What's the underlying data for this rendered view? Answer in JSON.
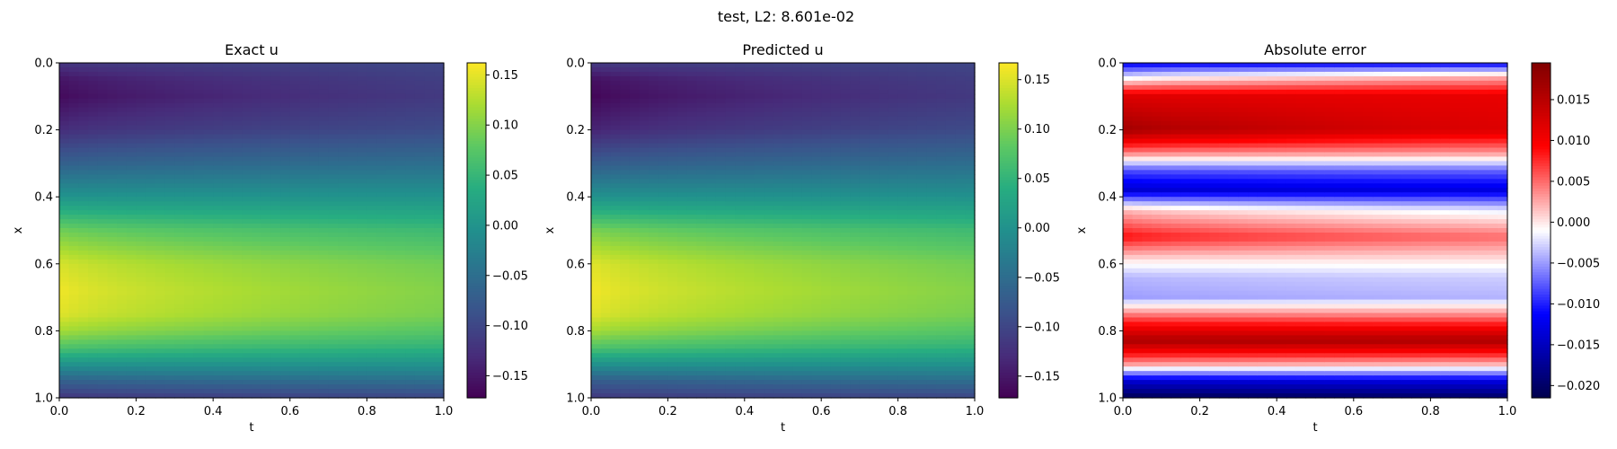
{
  "figure": {
    "suptitle": "test, L2: 8.601e-02"
  },
  "chart_data": [
    {
      "type": "heatmap",
      "title": "Exact u",
      "xlabel": "t",
      "ylabel": "x",
      "xlim": [
        0.0,
        1.0
      ],
      "ylim": [
        1.0,
        0.0
      ],
      "xticks": [
        "0.0",
        "0.2",
        "0.4",
        "0.6",
        "0.8",
        "1.0"
      ],
      "yticks": [
        "0.0",
        "0.2",
        "0.4",
        "0.6",
        "0.8",
        "1.0"
      ],
      "colormap": "viridis",
      "clim": [
        -0.172,
        0.162
      ],
      "colorbar_ticks": [
        {
          "value": 0.15,
          "label": "0.15"
        },
        {
          "value": 0.1,
          "label": "0.10"
        },
        {
          "value": 0.05,
          "label": "0.05"
        },
        {
          "value": 0.0,
          "label": "0.00"
        },
        {
          "value": -0.05,
          "label": "−0.05"
        },
        {
          "value": -0.1,
          "label": "−0.10"
        },
        {
          "value": -0.15,
          "label": "−0.15"
        }
      ],
      "field": {
        "x_at_t0": [
          0.0,
          0.05,
          0.1,
          0.2,
          0.3,
          0.4,
          0.5,
          0.6,
          0.68,
          0.75,
          0.8,
          0.85,
          0.9,
          0.95,
          1.0
        ],
        "u_at_t0": [
          -0.12,
          -0.155,
          -0.165,
          -0.13,
          -0.07,
          0.0,
          0.09,
          0.145,
          0.158,
          0.15,
          0.12,
          0.07,
          0.0,
          -0.07,
          -0.12
        ],
        "u_at_t1": [
          -0.1,
          -0.11,
          -0.115,
          -0.095,
          -0.05,
          0.0,
          0.055,
          0.09,
          0.1,
          0.095,
          0.075,
          0.045,
          0.0,
          -0.05,
          -0.1
        ]
      }
    },
    {
      "type": "heatmap",
      "title": "Predicted u",
      "xlabel": "t",
      "ylabel": "x",
      "xlim": [
        0.0,
        1.0
      ],
      "ylim": [
        1.0,
        0.0
      ],
      "xticks": [
        "0.0",
        "0.2",
        "0.4",
        "0.6",
        "0.8",
        "1.0"
      ],
      "yticks": [
        "0.0",
        "0.2",
        "0.4",
        "0.6",
        "0.8",
        "1.0"
      ],
      "colormap": "viridis",
      "clim": [
        -0.172,
        0.167
      ],
      "colorbar_ticks": [
        {
          "value": 0.15,
          "label": "0.15"
        },
        {
          "value": 0.1,
          "label": "0.10"
        },
        {
          "value": 0.05,
          "label": "0.05"
        },
        {
          "value": 0.0,
          "label": "0.00"
        },
        {
          "value": -0.05,
          "label": "−0.05"
        },
        {
          "value": -0.1,
          "label": "−0.10"
        },
        {
          "value": -0.15,
          "label": "−0.15"
        }
      ],
      "field": {
        "x_at_t0": [
          0.0,
          0.05,
          0.1,
          0.2,
          0.3,
          0.4,
          0.5,
          0.6,
          0.68,
          0.75,
          0.8,
          0.85,
          0.9,
          0.95,
          1.0
        ],
        "u_at_t0": [
          -0.115,
          -0.16,
          -0.17,
          -0.14,
          -0.075,
          0.0,
          0.1,
          0.155,
          0.165,
          0.155,
          0.125,
          0.075,
          0.0,
          -0.075,
          -0.115
        ],
        "u_at_t1": [
          -0.1,
          -0.11,
          -0.115,
          -0.095,
          -0.05,
          0.0,
          0.06,
          0.095,
          0.105,
          0.098,
          0.078,
          0.048,
          0.0,
          -0.05,
          -0.1
        ]
      }
    },
    {
      "type": "heatmap",
      "title": "Absolute error",
      "xlabel": "t",
      "ylabel": "x",
      "xlim": [
        0.0,
        1.0
      ],
      "ylim": [
        1.0,
        0.0
      ],
      "xticks": [
        "0.0",
        "0.2",
        "0.4",
        "0.6",
        "0.8",
        "1.0"
      ],
      "yticks": [
        "0.0",
        "0.2",
        "0.4",
        "0.6",
        "0.8",
        "1.0"
      ],
      "colormap": "seismic",
      "clim": [
        -0.0215,
        0.0195
      ],
      "colorbar_ticks": [
        {
          "value": 0.015,
          "label": "0.015"
        },
        {
          "value": 0.01,
          "label": "0.010"
        },
        {
          "value": 0.005,
          "label": "0.005"
        },
        {
          "value": 0.0,
          "label": "0.000"
        },
        {
          "value": -0.005,
          "label": "−0.005"
        },
        {
          "value": -0.01,
          "label": "−0.010"
        },
        {
          "value": -0.015,
          "label": "−0.015"
        },
        {
          "value": -0.02,
          "label": "−0.020"
        }
      ],
      "field": {
        "x_at_t0": [
          0.0,
          0.04,
          0.1,
          0.2,
          0.27,
          0.32,
          0.38,
          0.44,
          0.52,
          0.59,
          0.64,
          0.7,
          0.76,
          0.83,
          0.9,
          0.95,
          1.0
        ],
        "err_at_t0": [
          -0.012,
          -0.003,
          0.012,
          0.017,
          0.004,
          -0.008,
          -0.014,
          0.002,
          0.009,
          0.0,
          -0.004,
          -0.005,
          0.006,
          0.016,
          0.003,
          -0.014,
          -0.021
        ],
        "err_at_t1": [
          -0.012,
          0.002,
          0.011,
          0.012,
          0.003,
          -0.007,
          -0.013,
          -0.002,
          0.005,
          0.0,
          -0.003,
          -0.004,
          0.005,
          0.016,
          0.002,
          -0.013,
          -0.02
        ]
      }
    }
  ]
}
